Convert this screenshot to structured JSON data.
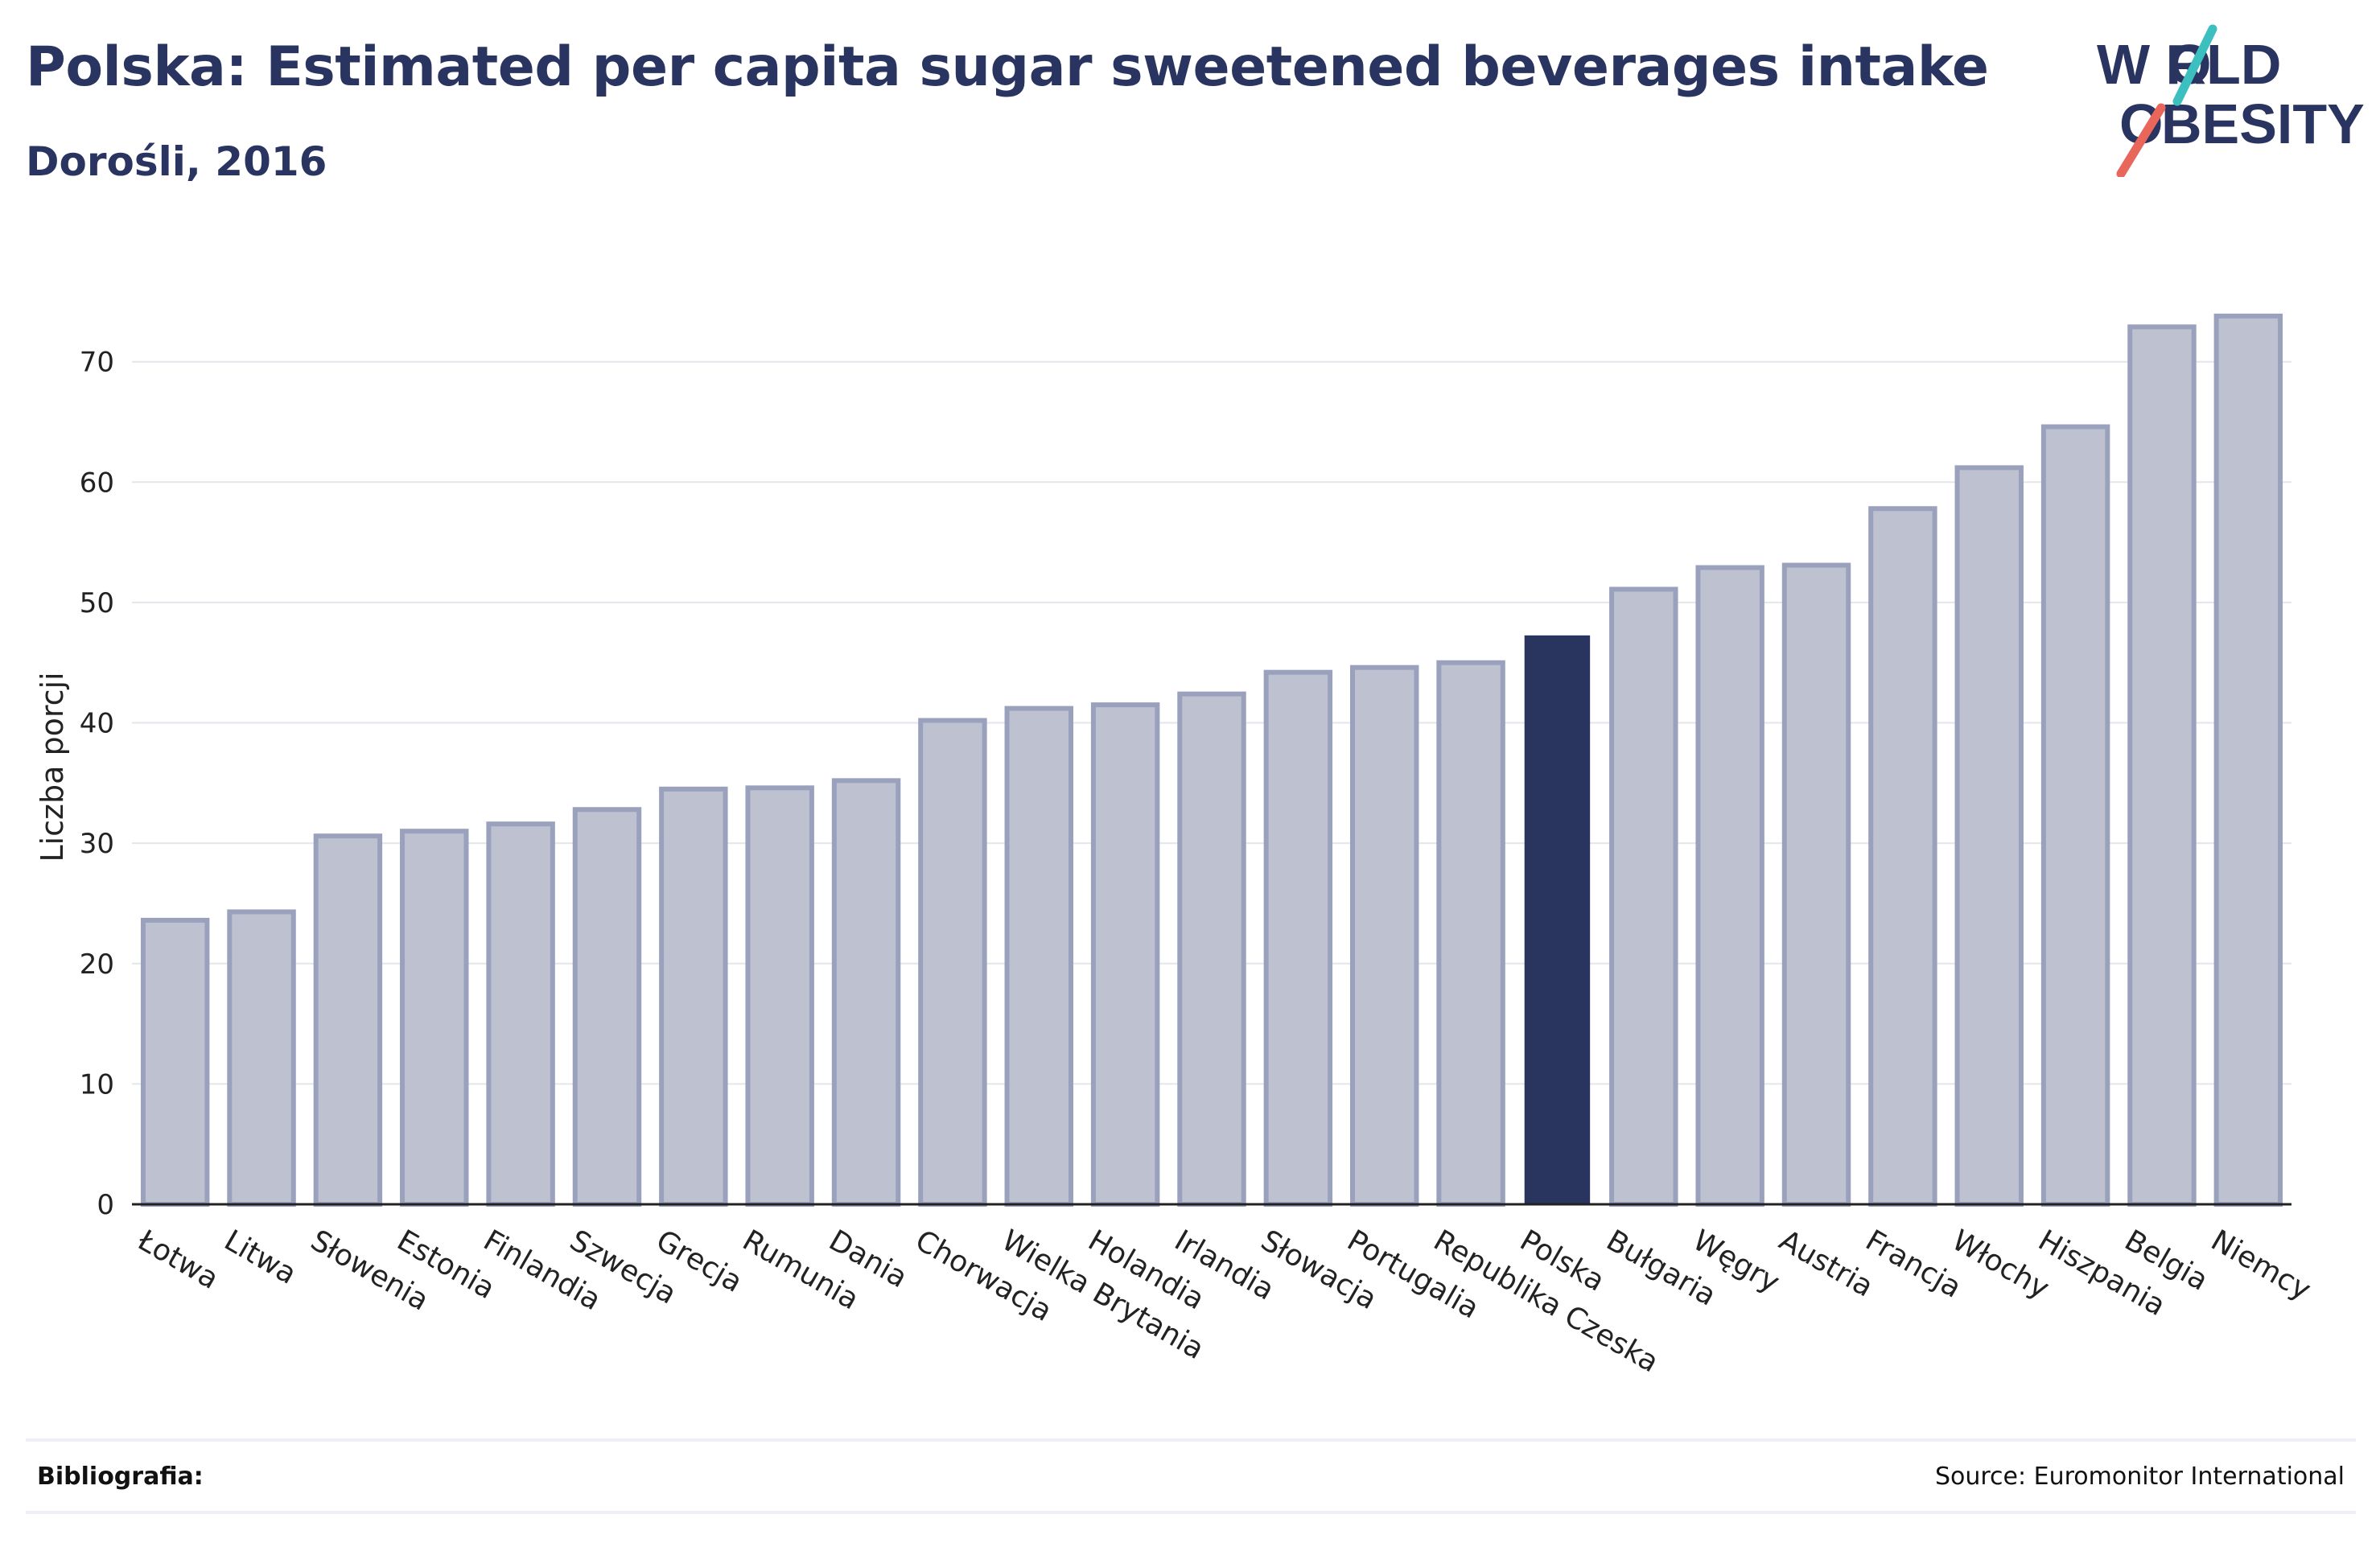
{
  "header": {
    "title": "Polska: Estimated per capita sugar sweetened beverages intake",
    "subtitle": "Dorośli, 2016"
  },
  "logo": {
    "line1": "W RLD",
    "line2": "BESITY",
    "accent_teal": "#3cbfbf",
    "accent_red": "#e8665a"
  },
  "footer": {
    "bibliography_label": "Bibliografia:",
    "source": "Source: Euromonitor International"
  },
  "colors": {
    "bar": "#bec2d0",
    "bar_edge": "#9aa1bc",
    "highlight": "#29345f",
    "text": "#2a3461",
    "grid": "#e4e6ec"
  },
  "chart_data": {
    "type": "bar",
    "ylabel": "Liczba porcji",
    "xlabel": "",
    "ylim": [
      0,
      78
    ],
    "yticks": [
      0,
      10,
      20,
      30,
      40,
      50,
      60,
      70
    ],
    "grid": true,
    "highlight_category": "Polska",
    "categories": [
      "Łotwa",
      "Litwa",
      "Słowenia",
      "Estonia",
      "Finlandia",
      "Szwecja",
      "Grecja",
      "Rumunia",
      "Dania",
      "Chorwacja",
      "Wielka Brytania",
      "Holandia",
      "Irlandia",
      "Słowacja",
      "Portugalia",
      "Republika Czeska",
      "Polska",
      "Bułgaria",
      "Węgry",
      "Austria",
      "Francja",
      "Włochy",
      "Hiszpania",
      "Belgia",
      "Niemcy"
    ],
    "values": [
      23.6,
      24.3,
      30.6,
      31.0,
      31.6,
      32.8,
      34.5,
      34.6,
      35.2,
      40.2,
      41.2,
      41.5,
      42.4,
      44.2,
      44.6,
      45.0,
      47.2,
      51.1,
      52.9,
      53.1,
      57.8,
      61.2,
      64.6,
      72.9,
      73.8
    ]
  }
}
